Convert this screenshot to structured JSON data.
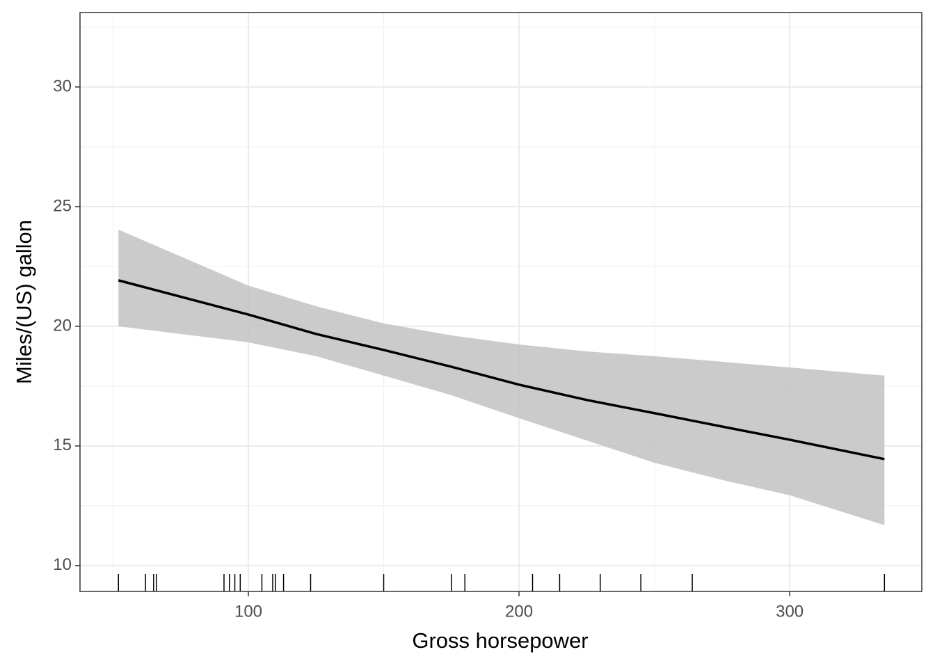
{
  "chart_data": {
    "type": "line",
    "x_label": "Gross horsepower",
    "y_label": "Miles/(US) gallon",
    "x": [
      52,
      100,
      125,
      150,
      175,
      200,
      225,
      250,
      275,
      300,
      335
    ],
    "values": [
      21.92,
      20.49,
      19.68,
      19.01,
      18.31,
      17.56,
      16.92,
      16.37,
      15.81,
      15.26,
      14.45
    ],
    "lower": [
      20.0,
      19.33,
      18.75,
      17.94,
      17.12,
      16.16,
      15.23,
      14.3,
      13.58,
      12.94,
      11.69
    ],
    "upper": [
      24.04,
      21.7,
      20.84,
      20.12,
      19.62,
      19.24,
      18.95,
      18.75,
      18.52,
      18.28,
      17.94
    ],
    "color": "#000000",
    "band_color": "#bebebe",
    "rug": [
      52,
      62,
      65,
      66,
      91,
      93,
      95,
      97,
      105,
      109,
      110,
      113,
      123,
      150,
      175,
      180,
      205,
      215,
      230,
      245,
      264,
      335
    ],
    "xlim": [
      37.8,
      348.8
    ],
    "ylim": [
      8.92,
      33.11
    ],
    "xticks": [
      100,
      200,
      300
    ],
    "yticks": [
      10,
      15,
      20,
      25,
      30
    ],
    "xminorticks": [
      50,
      150,
      250
    ],
    "yminorticks": [
      12.5,
      17.5,
      22.5,
      27.5,
      32.5
    ],
    "grid": true
  }
}
